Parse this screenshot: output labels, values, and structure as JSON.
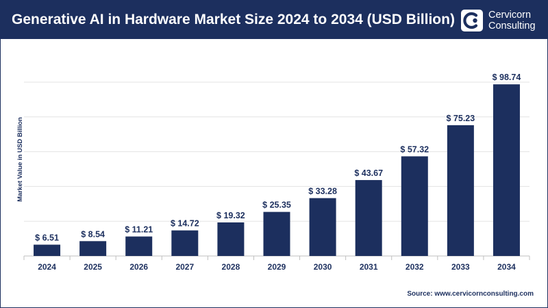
{
  "header": {
    "title": "Generative AI in Hardware Market Size 2024 to 2034 (USD Billion)",
    "logo_line1": "Cervicorn",
    "logo_line2": "Consulting"
  },
  "footer": {
    "source": "Source: www.cervicornconsulting.com"
  },
  "colors": {
    "header_bg": "#1c2f5e",
    "bar": "#1c2f5e",
    "grid": "#e3e3e3"
  },
  "chart_data": {
    "type": "bar",
    "title": "Generative AI in Hardware Market Size 2024 to 2034 (USD Billion)",
    "xlabel": "",
    "ylabel": "Market Value in USD Billion",
    "categories": [
      "2024",
      "2025",
      "2026",
      "2027",
      "2028",
      "2029",
      "2030",
      "2031",
      "2032",
      "2033",
      "2034"
    ],
    "values": [
      6.51,
      8.54,
      11.21,
      14.72,
      19.32,
      25.35,
      33.28,
      43.67,
      57.32,
      75.23,
      98.74
    ],
    "data_labels": [
      "$ 6.51",
      "$ 8.54",
      "$ 11.21",
      "$ 14.72",
      "$ 19.32",
      "$ 25.35",
      "$ 33.28",
      "$ 43.67",
      "$ 57.32",
      "$ 75.23",
      "$ 98.74"
    ],
    "ylim": [
      0,
      100
    ],
    "grid": true,
    "legend": "none"
  }
}
